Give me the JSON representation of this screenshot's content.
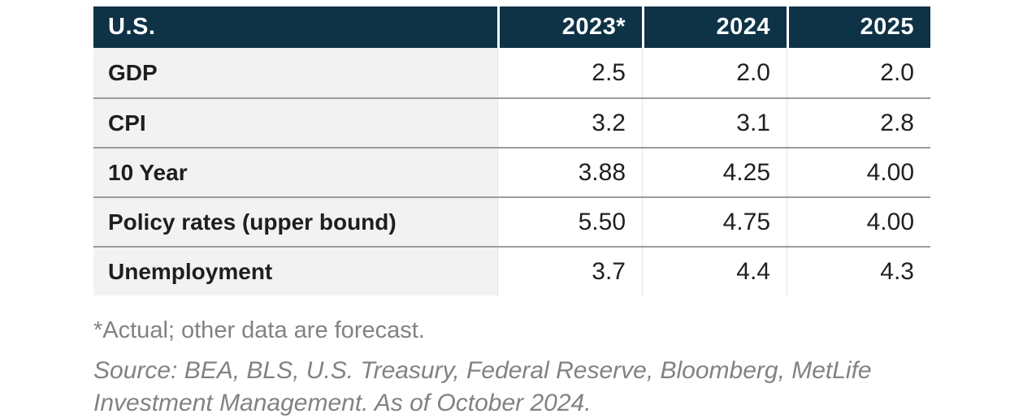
{
  "table": {
    "header": {
      "label": "U.S.",
      "columns": [
        "2023*",
        "2024",
        "2025"
      ]
    },
    "rows": [
      {
        "label": "GDP",
        "values": [
          "2.5",
          "2.0",
          "2.0"
        ]
      },
      {
        "label": "CPI",
        "values": [
          "3.2",
          "3.1",
          "2.8"
        ]
      },
      {
        "label": "10 Year",
        "values": [
          "3.88",
          "4.25",
          "4.00"
        ]
      },
      {
        "label": "Policy rates (upper bound)",
        "values": [
          "5.50",
          "4.75",
          "4.00"
        ]
      },
      {
        "label": "Unemployment",
        "values": [
          "3.7",
          "4.4",
          "4.3"
        ]
      }
    ]
  },
  "notes": {
    "footnote": "*Actual; other data are forecast.",
    "source": "Source: BEA, BLS, U.S. Treasury, Federal Reserve, Bloomberg, MetLife Investment Management. As of October 2024."
  },
  "colors": {
    "header_bg": "#0e3246",
    "header_text": "#ffffff",
    "label_bg": "#f2f2f2",
    "body_text": "#231f20",
    "row_separator": "#9c9c9c",
    "column_separator": "#e4e4e4",
    "note_text": "#808285"
  },
  "chart_data": {
    "type": "table",
    "title": "U.S.",
    "categories": [
      "2023*",
      "2024",
      "2025"
    ],
    "series": [
      {
        "name": "GDP",
        "values": [
          2.5,
          2.0,
          2.0
        ]
      },
      {
        "name": "CPI",
        "values": [
          3.2,
          3.1,
          2.8
        ]
      },
      {
        "name": "10 Year",
        "values": [
          3.88,
          4.25,
          4.0
        ]
      },
      {
        "name": "Policy rates (upper bound)",
        "values": [
          5.5,
          4.75,
          4.0
        ]
      },
      {
        "name": "Unemployment",
        "values": [
          3.7,
          4.4,
          4.3
        ]
      }
    ],
    "footnote": "*Actual; other data are forecast.",
    "source": "Source: BEA, BLS, U.S. Treasury, Federal Reserve, Bloomberg, MetLife Investment Management. As of October 2024."
  }
}
